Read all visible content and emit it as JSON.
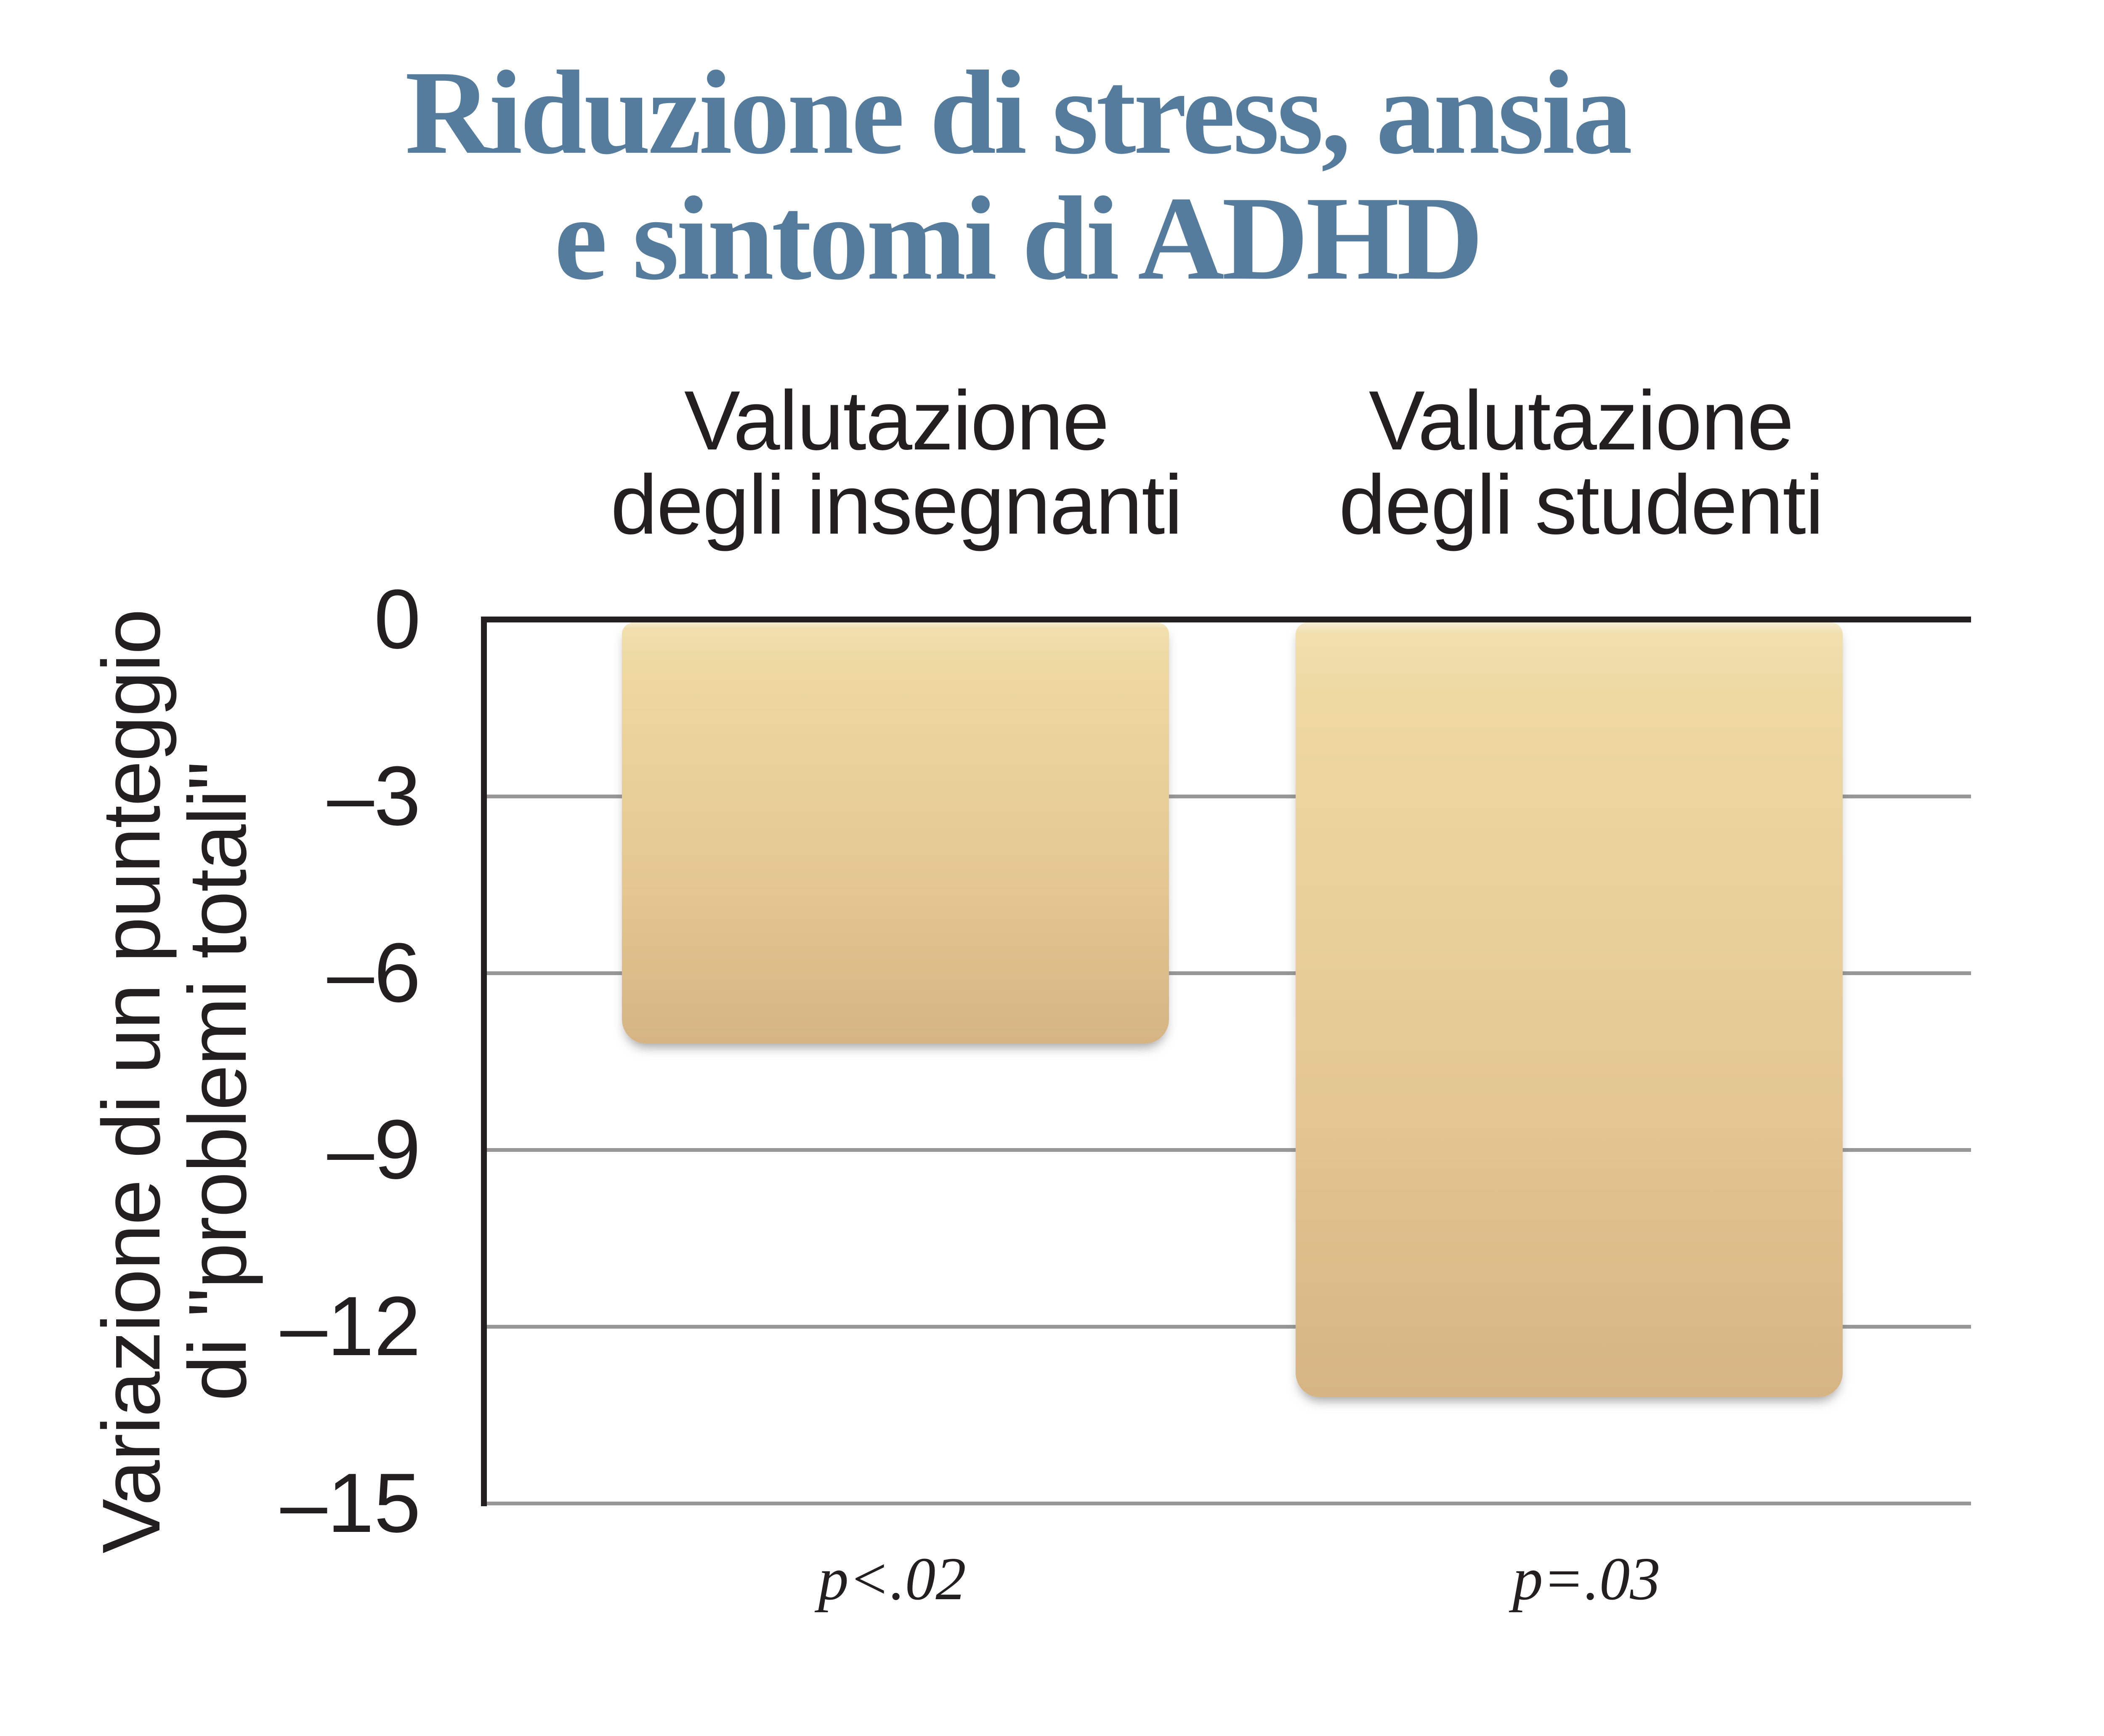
{
  "title": {
    "lines": [
      "Riduzione di stress, ansia",
      "e sintomi di ADHD"
    ],
    "color": "#567C9D"
  },
  "chart_data": {
    "type": "bar",
    "title": "Riduzione di stress, ansia e sintomi di ADHD",
    "categories": [
      "Valutazione degli insegnanti",
      "Valutazione degli studenti"
    ],
    "category_lines": [
      [
        "Valutazione",
        "degli insegnanti"
      ],
      [
        "Valutazione",
        "degli studenti"
      ]
    ],
    "values": [
      -7.2,
      -13.2
    ],
    "annotations": [
      "p<.02",
      "p=.03"
    ],
    "ylabel": "Variazione di un punteggio di \"problemi totali\"",
    "ylabel_lines": [
      "Variazione di un punteggio",
      "di \"problemi totali\""
    ],
    "yticks": [
      0,
      -3,
      -6,
      -9,
      -12,
      -15
    ],
    "ytick_labels": [
      "0",
      "–3",
      "–6",
      "–9",
      "–12",
      "–15"
    ],
    "ylim": [
      -15,
      0
    ],
    "grid": true,
    "legend": null,
    "colors": {
      "bar_top": "#F0DFAD",
      "bar_bottom": "#D6B484",
      "axis": "#231F20",
      "gridline": "#979797",
      "text": "#231F20",
      "title": "#567C9D"
    }
  }
}
